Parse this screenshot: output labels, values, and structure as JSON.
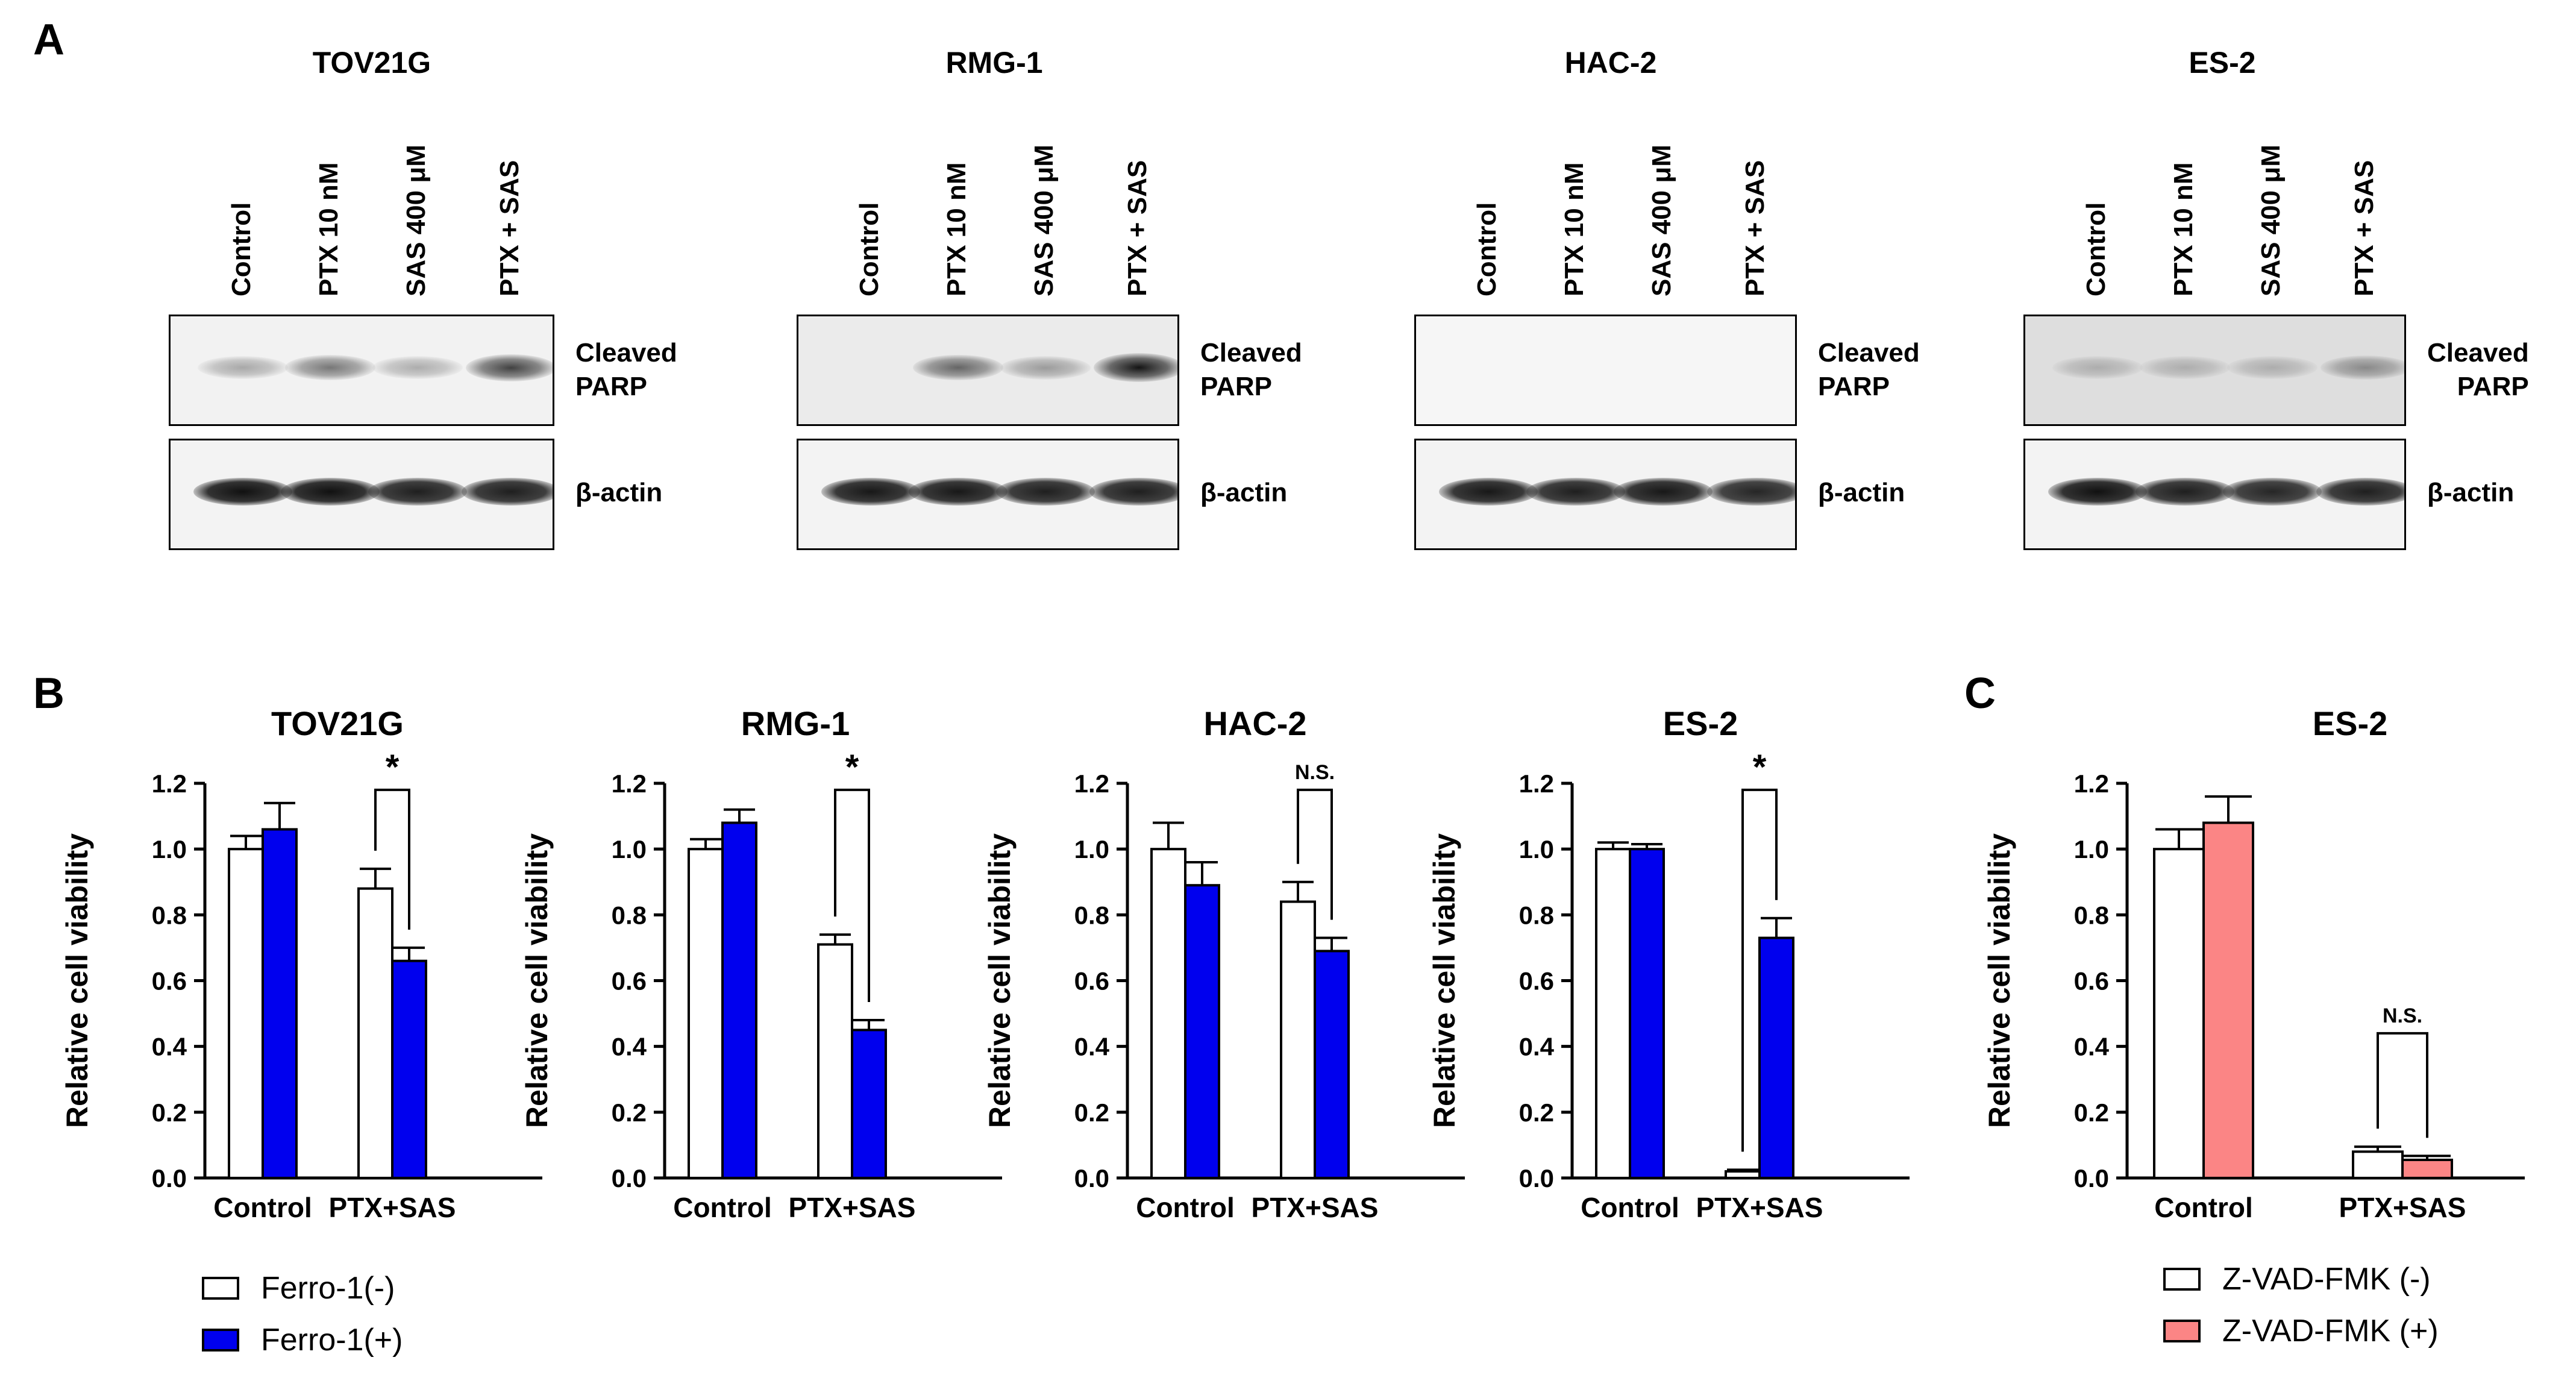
{
  "panel_letters": {
    "a": "A",
    "b": "B",
    "c": "C"
  },
  "western_blot": {
    "lanes": [
      "Control",
      "PTX 10 nM",
      "SAS 400 μM",
      "PTX + SAS"
    ],
    "protein_labels": {
      "cleaved_line1": "Cleaved",
      "cleaved_line2": "PARP",
      "actin": "β-actin"
    },
    "blots": [
      {
        "title": "TOV21G",
        "cleaved_intensity": [
          0.18,
          0.45,
          0.15,
          0.75
        ],
        "actin_intensity": [
          0.95,
          0.95,
          0.85,
          0.85
        ]
      },
      {
        "title": "RMG-1",
        "cleaved_intensity": [
          0.0,
          0.55,
          0.25,
          1.0
        ],
        "actin_intensity": [
          0.9,
          0.9,
          0.85,
          0.85
        ]
      },
      {
        "title": "HAC-2",
        "cleaved_intensity": [
          0.0,
          0.0,
          0.0,
          0.0
        ],
        "actin_intensity": [
          0.9,
          0.85,
          0.9,
          0.8
        ]
      },
      {
        "title": "ES-2",
        "cleaved_intensity": [
          0.15,
          0.15,
          0.15,
          0.35
        ],
        "actin_intensity": [
          0.95,
          0.85,
          0.8,
          0.85
        ]
      }
    ]
  },
  "chart_data": [
    {
      "type": "bar",
      "title": "TOV21G",
      "ylabel": "Relative cell viability",
      "categories": [
        "Control",
        "PTX+SAS"
      ],
      "ylim": [
        0,
        1.2
      ],
      "yticks": [
        "0.0",
        "0.2",
        "0.4",
        "0.6",
        "0.8",
        "1.0",
        "1.2"
      ],
      "series": [
        {
          "name": "Ferro-1(-)",
          "values": [
            1.0,
            0.88
          ],
          "errors": [
            0.04,
            0.06
          ]
        },
        {
          "name": "Ferro-1(+)",
          "values": [
            1.06,
            0.66
          ],
          "errors": [
            0.08,
            0.04
          ]
        }
      ],
      "annotation": "*"
    },
    {
      "type": "bar",
      "title": "RMG-1",
      "ylabel": "Relative cell viability",
      "categories": [
        "Control",
        "PTX+SAS"
      ],
      "ylim": [
        0,
        1.2
      ],
      "yticks": [
        "0.0",
        "0.2",
        "0.4",
        "0.6",
        "0.8",
        "1.0",
        "1.2"
      ],
      "series": [
        {
          "name": "Ferro-1(-)",
          "values": [
            1.0,
            0.71
          ],
          "errors": [
            0.03,
            0.03
          ]
        },
        {
          "name": "Ferro-1(+)",
          "values": [
            1.08,
            0.45
          ],
          "errors": [
            0.04,
            0.03
          ]
        }
      ],
      "annotation": "*"
    },
    {
      "type": "bar",
      "title": "HAC-2",
      "ylabel": "Relative cell viability",
      "categories": [
        "Control",
        "PTX+SAS"
      ],
      "ylim": [
        0,
        1.2
      ],
      "yticks": [
        "0.0",
        "0.2",
        "0.4",
        "0.6",
        "0.8",
        "1.0",
        "1.2"
      ],
      "series": [
        {
          "name": "Ferro-1(-)",
          "values": [
            1.0,
            0.84
          ],
          "errors": [
            0.08,
            0.06
          ]
        },
        {
          "name": "Ferro-1(+)",
          "values": [
            0.89,
            0.69
          ],
          "errors": [
            0.07,
            0.04
          ]
        }
      ],
      "annotation": "N.S."
    },
    {
      "type": "bar",
      "title": "ES-2",
      "ylabel": "Relative cell viability",
      "categories": [
        "Control",
        "PTX+SAS"
      ],
      "ylim": [
        0,
        1.2
      ],
      "yticks": [
        "0.0",
        "0.2",
        "0.4",
        "0.6",
        "0.8",
        "1.0",
        "1.2"
      ],
      "series": [
        {
          "name": "Ferro-1(-)",
          "values": [
            1.0,
            0.02
          ],
          "errors": [
            0.02,
            0.005
          ]
        },
        {
          "name": "Ferro-1(+)",
          "values": [
            1.0,
            0.73
          ],
          "errors": [
            0.015,
            0.06
          ]
        }
      ],
      "annotation": "*"
    },
    {
      "type": "bar",
      "title": "ES-2",
      "ylabel": "Relative cell viability",
      "categories": [
        "Control",
        "PTX+SAS"
      ],
      "ylim": [
        0,
        1.2
      ],
      "yticks": [
        "0.0",
        "0.2",
        "0.4",
        "0.6",
        "0.8",
        "1.0",
        "1.2"
      ],
      "series": [
        {
          "name": "Z-VAD-FMK (-)",
          "values": [
            1.0,
            0.08
          ],
          "errors": [
            0.06,
            0.015
          ]
        },
        {
          "name": "Z-VAD-FMK (+)",
          "values": [
            1.08,
            0.055
          ],
          "errors": [
            0.08,
            0.012
          ]
        }
      ],
      "annotation": "N.S."
    }
  ],
  "legends": {
    "b": [
      {
        "label": "Ferro-1(-)",
        "color": "#ffffff"
      },
      {
        "label": "Ferro-1(+)",
        "color": "#0000ee"
      }
    ],
    "c": [
      {
        "label": "Z-VAD-FMK (-)",
        "color": "#ffffff"
      },
      {
        "label": "Z-VAD-FMK (+)",
        "color": "#fb8585"
      }
    ]
  },
  "colors": {
    "ferro_plus": "#0000ee",
    "zvad_plus": "#fb8585",
    "outline": "#000000"
  }
}
